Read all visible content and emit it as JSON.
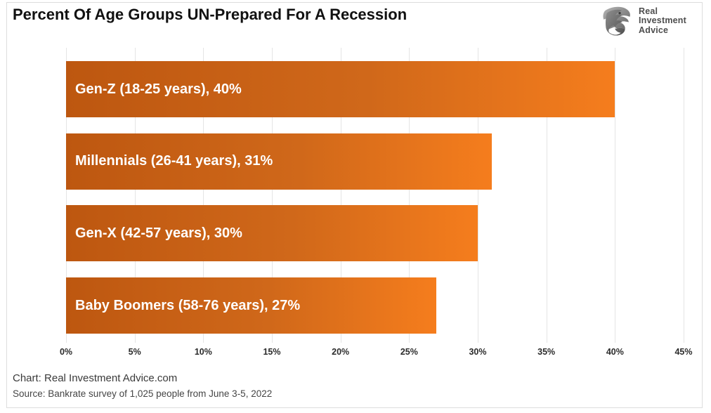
{
  "header": {
    "title": "Percent Of Age Groups UN-Prepared For A Recession",
    "logo": {
      "icon": "eagle-icon",
      "line1": "Real",
      "line2": "Investment",
      "line3": "Advice"
    }
  },
  "chart_data": {
    "type": "bar",
    "orientation": "horizontal",
    "title": "Percent Of Age Groups UN-Prepared For A Recession",
    "categories": [
      "Gen-Z (18-25 years)",
      "Millennials (26-41 years)",
      "Gen-X (42-57 years)",
      "Baby Boomers (58-76 years)"
    ],
    "values": [
      40,
      31,
      30,
      27
    ],
    "bar_labels": [
      "Gen-Z (18-25 years), 40%",
      "Millennials (26-41 years), 31%",
      "Gen-X (42-57 years), 30%",
      "Baby Boomers (58-76 years), 27%"
    ],
    "xlabel": "",
    "ylabel": "",
    "xlim": [
      0,
      45
    ],
    "x_ticks": [
      0,
      5,
      10,
      15,
      20,
      25,
      30,
      35,
      40,
      45
    ],
    "x_tick_labels": [
      "0%",
      "5%",
      "10%",
      "15%",
      "20%",
      "25%",
      "30%",
      "35%",
      "40%",
      "45%"
    ],
    "grid": "vertical",
    "legend": "none",
    "bar_gradient_start": "#bd5710",
    "bar_gradient_end": "#f57d1d",
    "bar_label_color": "#ffffff"
  },
  "footer": {
    "chart_credit": "Chart: Real Investment Advice.com",
    "source": "Source: Bankrate survey of 1,025 people from June 3-5, 2022"
  }
}
